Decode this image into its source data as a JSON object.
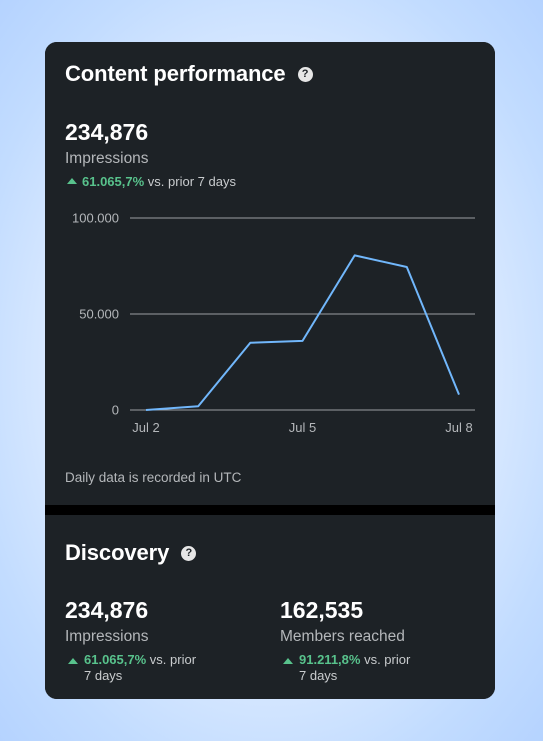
{
  "content_performance": {
    "title": "Content performance",
    "help_icon": "question-circle-icon",
    "metric": {
      "value": "234,876",
      "label": "Impressions",
      "change_pct": "61.065,7%",
      "change_text": "vs. prior 7 days",
      "trend": "up"
    },
    "footnote": "Daily data is recorded in UTC"
  },
  "discovery": {
    "title": "Discovery",
    "help_icon": "question-circle-icon",
    "metrics": [
      {
        "value": "234,876",
        "label": "Impressions",
        "change_pct": "61.065,7%",
        "change_text": "vs. prior",
        "change_text2": "7 days",
        "trend": "up"
      },
      {
        "value": "162,535",
        "label": "Members reached",
        "change_pct": "91.211,8%",
        "change_text": "vs. prior",
        "change_text2": "7 days",
        "trend": "up"
      }
    ]
  },
  "colors": {
    "card_bg": "#1d2226",
    "line": "#71b7fb",
    "positive": "#58c28c",
    "gridline": "#9a9ea2"
  },
  "chart_data": {
    "type": "line",
    "x": [
      "Jul 2",
      "Jul 3",
      "Jul 4",
      "Jul 5",
      "Jul 6",
      "Jul 7",
      "Jul 8"
    ],
    "series": [
      {
        "values": [
          0,
          2000,
          35000,
          36000,
          80500,
          74500,
          8000
        ]
      }
    ],
    "ylim": [
      0,
      100000
    ],
    "y_ticks": [
      {
        "value": 0,
        "label": "0"
      },
      {
        "value": 50000,
        "label": "50.000"
      },
      {
        "value": 100000,
        "label": "100.000"
      }
    ],
    "x_ticks": [
      {
        "index": 0,
        "label": "Jul 2"
      },
      {
        "index": 3,
        "label": "Jul 5"
      },
      {
        "index": 6,
        "label": "Jul 8"
      }
    ],
    "grid": true,
    "legend": "none"
  }
}
